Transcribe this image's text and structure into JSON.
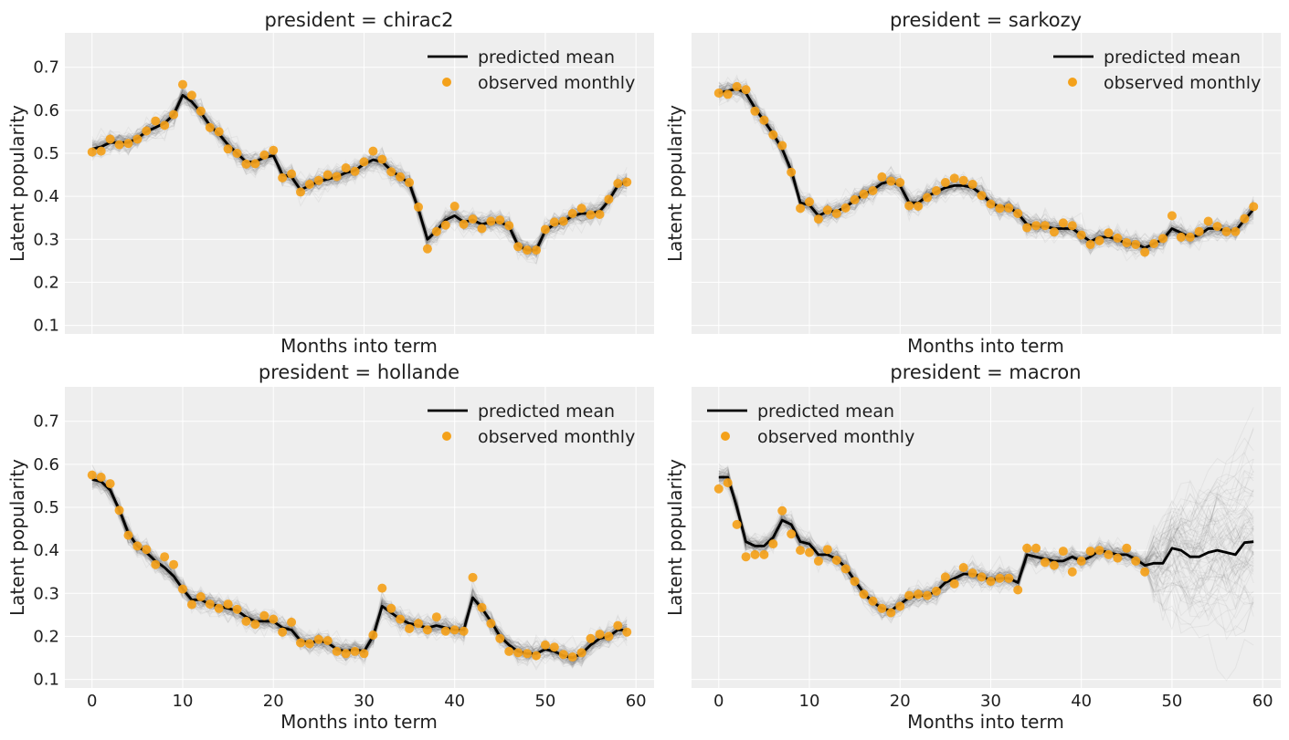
{
  "chart_data": [
    {
      "type": "line",
      "title": "president = chirac2",
      "xlabel": "Months into term",
      "ylabel": "Latent popularity",
      "xlim": [
        -3,
        62
      ],
      "ylim": [
        0.08,
        0.78
      ],
      "xticks": [],
      "yticks": [
        "0.1",
        "0.2",
        "0.3",
        "0.4",
        "0.5",
        "0.6",
        "0.7"
      ],
      "legend": {
        "position": "top-right",
        "mean_label": "predicted mean",
        "obs_label": "observed monthly"
      },
      "grid": true,
      "series": [
        {
          "name": "predicted mean",
          "x": [
            0,
            1,
            2,
            3,
            4,
            5,
            6,
            7,
            8,
            9,
            10,
            11,
            12,
            13,
            14,
            15,
            16,
            17,
            18,
            19,
            20,
            21,
            22,
            23,
            24,
            25,
            26,
            27,
            28,
            29,
            30,
            31,
            32,
            33,
            34,
            35,
            36,
            37,
            38,
            39,
            40,
            41,
            42,
            43,
            44,
            45,
            46,
            47,
            48,
            49,
            50,
            51,
            52,
            53,
            54,
            55,
            56,
            57,
            58,
            59
          ],
          "values": [
            0.51,
            0.515,
            0.525,
            0.525,
            0.525,
            0.535,
            0.55,
            0.56,
            0.57,
            0.59,
            0.635,
            0.62,
            0.595,
            0.565,
            0.545,
            0.52,
            0.5,
            0.48,
            0.48,
            0.49,
            0.495,
            0.45,
            0.445,
            0.415,
            0.425,
            0.435,
            0.44,
            0.445,
            0.455,
            0.46,
            0.475,
            0.485,
            0.48,
            0.46,
            0.445,
            0.43,
            0.37,
            0.3,
            0.32,
            0.345,
            0.355,
            0.34,
            0.345,
            0.335,
            0.34,
            0.34,
            0.33,
            0.285,
            0.275,
            0.275,
            0.32,
            0.335,
            0.34,
            0.355,
            0.36,
            0.36,
            0.365,
            0.39,
            0.425,
            0.435
          ]
        },
        {
          "name": "observed monthly",
          "x": [
            0,
            1,
            2,
            3,
            4,
            5,
            6,
            7,
            8,
            9,
            10,
            11,
            12,
            13,
            14,
            15,
            16,
            17,
            18,
            19,
            20,
            21,
            22,
            23,
            24,
            25,
            26,
            27,
            28,
            29,
            30,
            31,
            32,
            33,
            34,
            35,
            36,
            37,
            38,
            39,
            40,
            41,
            42,
            43,
            44,
            45,
            46,
            47,
            48,
            49,
            50,
            51,
            52,
            53,
            54,
            55,
            56,
            57,
            58,
            59
          ],
          "values": [
            0.503,
            0.505,
            0.533,
            0.52,
            0.523,
            0.533,
            0.552,
            0.575,
            0.565,
            0.59,
            0.66,
            0.635,
            0.598,
            0.56,
            0.55,
            0.51,
            0.5,
            0.475,
            0.476,
            0.496,
            0.507,
            0.443,
            0.452,
            0.41,
            0.428,
            0.437,
            0.45,
            0.446,
            0.466,
            0.458,
            0.48,
            0.505,
            0.486,
            0.457,
            0.445,
            0.432,
            0.375,
            0.278,
            0.318,
            0.333,
            0.377,
            0.335,
            0.347,
            0.325,
            0.342,
            0.345,
            0.332,
            0.283,
            0.275,
            0.275,
            0.323,
            0.34,
            0.342,
            0.36,
            0.372,
            0.357,
            0.358,
            0.393,
            0.43,
            0.433
          ]
        }
      ]
    },
    {
      "type": "line",
      "title": "president = sarkozy",
      "xlabel": "Months into term",
      "ylabel": "Latent popularity",
      "xlim": [
        -3,
        62
      ],
      "ylim": [
        0.08,
        0.78
      ],
      "xticks": [],
      "yticks": [],
      "legend": {
        "position": "top-right",
        "mean_label": "predicted mean",
        "obs_label": "observed monthly"
      },
      "grid": true,
      "series": [
        {
          "name": "predicted mean",
          "x": [
            0,
            1,
            2,
            3,
            4,
            5,
            6,
            7,
            8,
            9,
            10,
            11,
            12,
            13,
            14,
            15,
            16,
            17,
            18,
            19,
            20,
            21,
            22,
            23,
            24,
            25,
            26,
            27,
            28,
            29,
            30,
            31,
            32,
            33,
            34,
            35,
            36,
            37,
            38,
            39,
            40,
            41,
            42,
            43,
            44,
            45,
            46,
            47,
            48,
            49,
            50,
            51,
            52,
            53,
            54,
            55,
            56,
            57,
            58,
            59
          ],
          "values": [
            0.64,
            0.645,
            0.65,
            0.64,
            0.605,
            0.575,
            0.545,
            0.51,
            0.46,
            0.385,
            0.38,
            0.355,
            0.365,
            0.365,
            0.375,
            0.39,
            0.405,
            0.415,
            0.43,
            0.435,
            0.425,
            0.385,
            0.385,
            0.4,
            0.41,
            0.42,
            0.425,
            0.425,
            0.42,
            0.405,
            0.385,
            0.375,
            0.375,
            0.36,
            0.335,
            0.33,
            0.33,
            0.325,
            0.325,
            0.325,
            0.31,
            0.295,
            0.305,
            0.305,
            0.3,
            0.29,
            0.29,
            0.28,
            0.29,
            0.3,
            0.325,
            0.315,
            0.305,
            0.31,
            0.325,
            0.325,
            0.32,
            0.32,
            0.345,
            0.37
          ]
        },
        {
          "name": "observed monthly",
          "x": [
            0,
            1,
            2,
            3,
            4,
            5,
            6,
            7,
            8,
            9,
            10,
            11,
            12,
            13,
            14,
            15,
            16,
            17,
            18,
            19,
            20,
            21,
            22,
            23,
            24,
            25,
            26,
            27,
            28,
            29,
            30,
            31,
            32,
            33,
            34,
            35,
            36,
            37,
            38,
            39,
            40,
            41,
            42,
            43,
            44,
            45,
            46,
            47,
            48,
            49,
            50,
            51,
            52,
            53,
            54,
            55,
            56,
            57,
            58,
            59
          ],
          "values": [
            0.64,
            0.637,
            0.655,
            0.648,
            0.598,
            0.577,
            0.543,
            0.518,
            0.456,
            0.372,
            0.387,
            0.347,
            0.368,
            0.36,
            0.373,
            0.392,
            0.405,
            0.413,
            0.445,
            0.435,
            0.432,
            0.378,
            0.377,
            0.397,
            0.413,
            0.432,
            0.442,
            0.437,
            0.428,
            0.402,
            0.382,
            0.372,
            0.373,
            0.36,
            0.327,
            0.332,
            0.332,
            0.317,
            0.338,
            0.332,
            0.31,
            0.288,
            0.297,
            0.315,
            0.303,
            0.292,
            0.288,
            0.27,
            0.29,
            0.302,
            0.355,
            0.305,
            0.305,
            0.318,
            0.342,
            0.33,
            0.318,
            0.318,
            0.348,
            0.376
          ]
        }
      ]
    },
    {
      "type": "line",
      "title": "president = hollande",
      "xlabel": "Months into term",
      "ylabel": "Latent popularity",
      "xlim": [
        -3,
        62
      ],
      "ylim": [
        0.08,
        0.78
      ],
      "xticks": [
        "0",
        "10",
        "20",
        "30",
        "40",
        "50",
        "60"
      ],
      "yticks": [
        "0.1",
        "0.2",
        "0.3",
        "0.4",
        "0.5",
        "0.6",
        "0.7"
      ],
      "legend": {
        "position": "top-right",
        "mean_label": "predicted mean",
        "obs_label": "observed monthly"
      },
      "grid": true,
      "series": [
        {
          "name": "predicted mean",
          "x": [
            0,
            1,
            2,
            3,
            4,
            5,
            6,
            7,
            8,
            9,
            10,
            11,
            12,
            13,
            14,
            15,
            16,
            17,
            18,
            19,
            20,
            21,
            22,
            23,
            24,
            25,
            26,
            27,
            28,
            29,
            30,
            31,
            32,
            33,
            34,
            35,
            36,
            37,
            38,
            39,
            40,
            41,
            42,
            43,
            44,
            45,
            46,
            47,
            48,
            49,
            50,
            51,
            52,
            53,
            54,
            55,
            56,
            57,
            58,
            59
          ],
          "values": [
            0.565,
            0.56,
            0.54,
            0.495,
            0.44,
            0.41,
            0.395,
            0.375,
            0.36,
            0.34,
            0.31,
            0.285,
            0.285,
            0.275,
            0.27,
            0.265,
            0.26,
            0.245,
            0.235,
            0.235,
            0.235,
            0.22,
            0.215,
            0.19,
            0.185,
            0.19,
            0.185,
            0.17,
            0.165,
            0.17,
            0.165,
            0.2,
            0.27,
            0.255,
            0.24,
            0.23,
            0.225,
            0.22,
            0.225,
            0.22,
            0.215,
            0.215,
            0.29,
            0.265,
            0.235,
            0.2,
            0.18,
            0.165,
            0.16,
            0.16,
            0.17,
            0.165,
            0.155,
            0.15,
            0.16,
            0.18,
            0.195,
            0.2,
            0.215,
            0.215
          ]
        },
        {
          "name": "observed monthly",
          "x": [
            0,
            1,
            2,
            3,
            4,
            5,
            6,
            7,
            8,
            9,
            10,
            11,
            12,
            13,
            14,
            15,
            16,
            17,
            18,
            19,
            20,
            21,
            22,
            23,
            24,
            25,
            26,
            27,
            28,
            29,
            30,
            31,
            32,
            33,
            34,
            35,
            36,
            37,
            38,
            39,
            40,
            41,
            42,
            43,
            44,
            45,
            46,
            47,
            48,
            49,
            50,
            51,
            52,
            53,
            54,
            55,
            56,
            57,
            58,
            59
          ],
          "values": [
            0.575,
            0.57,
            0.555,
            0.493,
            0.435,
            0.41,
            0.402,
            0.367,
            0.385,
            0.367,
            0.31,
            0.274,
            0.292,
            0.275,
            0.265,
            0.275,
            0.263,
            0.235,
            0.228,
            0.248,
            0.24,
            0.21,
            0.233,
            0.185,
            0.183,
            0.193,
            0.19,
            0.165,
            0.16,
            0.165,
            0.16,
            0.203,
            0.312,
            0.265,
            0.24,
            0.218,
            0.23,
            0.215,
            0.245,
            0.212,
            0.215,
            0.212,
            0.337,
            0.267,
            0.23,
            0.195,
            0.165,
            0.162,
            0.16,
            0.155,
            0.18,
            0.175,
            0.158,
            0.152,
            0.162,
            0.195,
            0.205,
            0.2,
            0.225,
            0.21
          ]
        }
      ]
    },
    {
      "type": "line",
      "title": "president = macron",
      "xlabel": "Months into term",
      "ylabel": "Latent popularity",
      "xlim": [
        -3,
        62
      ],
      "ylim": [
        0.08,
        0.78
      ],
      "xticks": [
        "0",
        "10",
        "20",
        "30",
        "40",
        "50",
        "60"
      ],
      "yticks": [],
      "legend": {
        "position": "top-left",
        "mean_label": "predicted mean",
        "obs_label": "observed monthly"
      },
      "grid": true,
      "series": [
        {
          "name": "predicted mean",
          "x": [
            0,
            1,
            2,
            3,
            4,
            5,
            6,
            7,
            8,
            9,
            10,
            11,
            12,
            13,
            14,
            15,
            16,
            17,
            18,
            19,
            20,
            21,
            22,
            23,
            24,
            25,
            26,
            27,
            28,
            29,
            30,
            31,
            32,
            33,
            34,
            35,
            36,
            37,
            38,
            39,
            40,
            41,
            42,
            43,
            44,
            45,
            46,
            47,
            48,
            49,
            50,
            51,
            52,
            53,
            54,
            55,
            56,
            57,
            58,
            59
          ],
          "values": [
            0.57,
            0.57,
            0.5,
            0.42,
            0.41,
            0.41,
            0.43,
            0.47,
            0.46,
            0.42,
            0.415,
            0.39,
            0.39,
            0.38,
            0.36,
            0.33,
            0.3,
            0.28,
            0.265,
            0.26,
            0.275,
            0.29,
            0.295,
            0.295,
            0.305,
            0.325,
            0.335,
            0.345,
            0.345,
            0.34,
            0.33,
            0.335,
            0.335,
            0.325,
            0.39,
            0.385,
            0.38,
            0.375,
            0.375,
            0.385,
            0.375,
            0.385,
            0.4,
            0.395,
            0.39,
            0.39,
            0.38,
            0.365,
            0.37,
            0.37,
            0.405,
            0.4,
            0.385,
            0.385,
            0.395,
            0.4,
            0.395,
            0.39,
            0.418,
            0.42
          ]
        },
        {
          "name": "observed monthly",
          "x": [
            0,
            1,
            2,
            3,
            4,
            5,
            6,
            7,
            8,
            9,
            10,
            11,
            12,
            13,
            14,
            15,
            16,
            17,
            18,
            19,
            20,
            21,
            22,
            23,
            24,
            25,
            26,
            27,
            28,
            29,
            30,
            31,
            32,
            33,
            34,
            35,
            36,
            37,
            38,
            39,
            40,
            41,
            42,
            43,
            44,
            45,
            46,
            47
          ],
          "values": [
            0.543,
            0.557,
            0.46,
            0.385,
            0.39,
            0.39,
            0.415,
            0.492,
            0.438,
            0.4,
            0.395,
            0.375,
            0.402,
            0.377,
            0.357,
            0.328,
            0.298,
            0.282,
            0.265,
            0.255,
            0.27,
            0.295,
            0.298,
            0.295,
            0.305,
            0.338,
            0.322,
            0.36,
            0.347,
            0.338,
            0.328,
            0.335,
            0.335,
            0.308,
            0.405,
            0.405,
            0.372,
            0.365,
            0.398,
            0.35,
            0.375,
            0.398,
            0.4,
            0.39,
            0.382,
            0.405,
            0.375,
            0.35
          ]
        }
      ]
    }
  ]
}
